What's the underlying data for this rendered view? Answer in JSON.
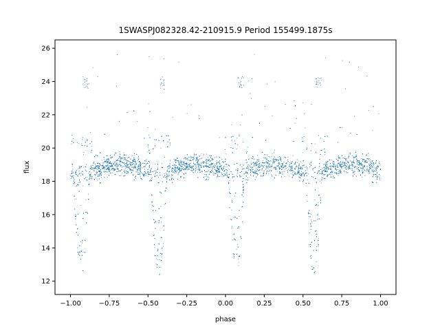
{
  "chart_data": {
    "type": "scatter",
    "title": "1SWASPJ082328.42-210915.9 Period 155499.1875s",
    "xlabel": "phase",
    "ylabel": "flux",
    "xlim": [
      -1.1,
      1.1
    ],
    "ylim": [
      11.2,
      26.5
    ],
    "x_ticks": [
      -1.0,
      -0.75,
      -0.5,
      -0.25,
      0.0,
      0.25,
      0.5,
      0.75,
      1.0
    ],
    "x_tick_labels": [
      "−1.00",
      "−0.75",
      "−0.50",
      "−0.25",
      "0.00",
      "0.25",
      "0.50",
      "0.75",
      "1.00"
    ],
    "y_ticks": [
      12,
      14,
      16,
      18,
      20,
      22,
      24,
      26
    ],
    "y_tick_labels": [
      "12",
      "14",
      "16",
      "18",
      "20",
      "22",
      "24",
      "26"
    ],
    "grid": false,
    "marker_color": "#1f77b4",
    "series": [
      {
        "baseline_flux": 18.8,
        "eclipse_centers_phase": [
          -0.93,
          -0.43,
          0.07,
          0.57
        ],
        "eclipse_min_flux": 12.3,
        "outlier_flux_band": [
          23.5,
          24.3
        ],
        "points_description_count": 9000
      }
    ]
  }
}
